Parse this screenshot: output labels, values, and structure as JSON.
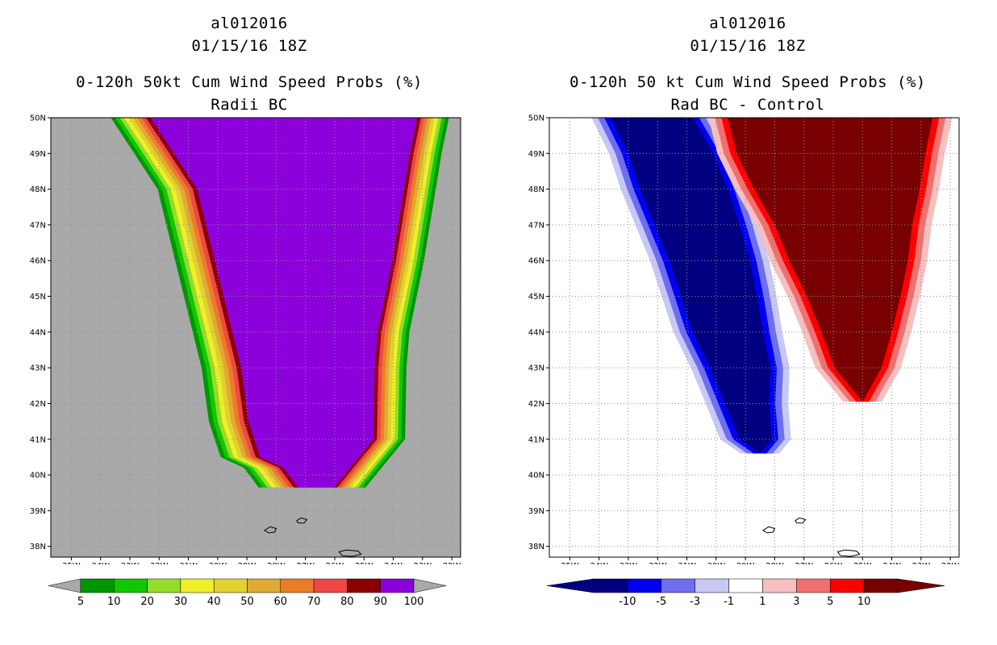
{
  "panels": [
    {
      "storm_id": "al012016",
      "datetime": "01/15/16 18Z",
      "title": "0-120h 50kt Cum Wind Speed Probs (%)",
      "subtitle": "Radii BC"
    },
    {
      "storm_id": "al012016",
      "datetime": "01/15/16 18Z",
      "title": "0-120h 50 kt Cum Wind Speed Probs (%)",
      "subtitle": "Rad BC - Control"
    }
  ],
  "chart_data": [
    {
      "type": "heatmap",
      "title": "0-120h 50kt Cum Wind Speed Probs (%)",
      "subtitle": "Radii BC",
      "x_range_deg_lon": [
        -35.7,
        -21.7
      ],
      "y_range_deg_lat": [
        37.7,
        50
      ],
      "x_tick_labels": [
        "35W",
        "34W",
        "33W",
        "32W",
        "31W",
        "30W",
        "29W",
        "28W",
        "27W",
        "26W",
        "25W",
        "24W",
        "23W",
        "22W"
      ],
      "x_tick_values": [
        -35,
        -34,
        -33,
        -32,
        -31,
        -30,
        -29,
        -28,
        -27,
        -26,
        -25,
        -24,
        -23,
        -22
      ],
      "y_tick_labels": [
        "38N",
        "39N",
        "40N",
        "41N",
        "42N",
        "43N",
        "44N",
        "45N",
        "46N",
        "47N",
        "48N",
        "49N",
        "50N"
      ],
      "y_tick_values": [
        38,
        39,
        40,
        41,
        42,
        43,
        44,
        45,
        46,
        47,
        48,
        49,
        50
      ],
      "background_color": "#a9a9a9",
      "colorbar": {
        "labels": [
          "5",
          "10",
          "20",
          "30",
          "40",
          "50",
          "60",
          "70",
          "80",
          "90",
          "100"
        ],
        "colors": [
          "#009600",
          "#10c800",
          "#96dc28",
          "#f0f028",
          "#e1d232",
          "#e1aa32",
          "#eb7d28",
          "#f04646",
          "#8c0000",
          "#8c00dc"
        ],
        "under_color": "#a9a9a9",
        "over_color": "#a9a9a9"
      },
      "swath_levels_percent": [
        5,
        10,
        20,
        30,
        40,
        50,
        60,
        70,
        80,
        90
      ],
      "swath_west_edge": [
        {
          "lat": 50.0,
          "lon": -32.3
        },
        {
          "lat": 49.0,
          "lon": -31.5
        },
        {
          "lat": 48.0,
          "lon": -30.7
        },
        {
          "lat": 47.0,
          "lon": -30.4
        },
        {
          "lat": 46.0,
          "lon": -30.1
        },
        {
          "lat": 45.0,
          "lon": -29.8
        },
        {
          "lat": 44.0,
          "lon": -29.5
        },
        {
          "lat": 43.0,
          "lon": -29.2
        },
        {
          "lat": 41.5,
          "lon": -28.95
        },
        {
          "lat": 40.5,
          "lon": -28.55
        },
        {
          "lat": 40.2,
          "lon": -27.75
        },
        {
          "lat": 39.65,
          "lon": -27.25
        },
        {
          "lat": 39.65,
          "lon": -26.05
        }
      ],
      "swath_east_edge": [
        {
          "lat": 50.0,
          "lon": -23.2
        },
        {
          "lat": 49.0,
          "lon": -23.45
        },
        {
          "lat": 48.0,
          "lon": -23.65
        },
        {
          "lat": 47.0,
          "lon": -23.85
        },
        {
          "lat": 46.0,
          "lon": -24.05
        },
        {
          "lat": 45.0,
          "lon": -24.3
        },
        {
          "lat": 44.0,
          "lon": -24.55
        },
        {
          "lat": 43.0,
          "lon": -24.65
        },
        {
          "lat": 41.0,
          "lon": -24.7
        },
        {
          "lat": 39.65,
          "lon": -26.05
        }
      ],
      "swath_widths_deg": [
        0.4,
        0.8,
        1.2,
        1.45,
        1.7,
        1.9,
        2.1,
        2.3,
        2.55,
        5
      ]
    },
    {
      "type": "heatmap",
      "title": "0-120h 50 kt Cum Wind Speed Probs (%)",
      "subtitle": "Rad BC - Control",
      "x_range_deg_lon": [
        -35.7,
        -21.7
      ],
      "y_range_deg_lat": [
        37.7,
        50
      ],
      "x_tick_labels": [
        "35W",
        "34W",
        "33W",
        "32W",
        "31W",
        "30W",
        "29W",
        "28W",
        "27W",
        "26W",
        "25W",
        "24W",
        "23W",
        "22W"
      ],
      "x_tick_values": [
        -35,
        -34,
        -33,
        -32,
        -31,
        -30,
        -29,
        -28,
        -27,
        -26,
        -25,
        -24,
        -23,
        -22
      ],
      "y_tick_labels": [
        "38N",
        "39N",
        "40N",
        "41N",
        "42N",
        "43N",
        "44N",
        "45N",
        "46N",
        "47N",
        "48N",
        "49N",
        "50N"
      ],
      "y_tick_values": [
        38,
        39,
        40,
        41,
        42,
        43,
        44,
        45,
        46,
        47,
        48,
        49,
        50
      ],
      "background_color": "#ffffff",
      "colorbar": {
        "labels": [
          "-10",
          "-5",
          "-3",
          "-1",
          "1",
          "3",
          "5",
          "10"
        ],
        "colors": [
          "#000080",
          "#0000f0",
          "#6e6ef0",
          "#c8c8f5",
          "#ffffff",
          "#f5c0c0",
          "#f07070",
          "#ff0000",
          "#780000"
        ],
        "under_color": "#000080",
        "over_color": "#780000"
      },
      "negative_band": {
        "levels": [
          -1,
          -3,
          -5,
          -10
        ],
        "colors": [
          "#c8c8f5",
          "#6e6ef0",
          "#0000f0",
          "#000080"
        ],
        "west_edge": [
          {
            "lat": 50.0,
            "lon": -33.6
          },
          {
            "lat": 49.0,
            "lon": -33.0
          },
          {
            "lat": 48.0,
            "lon": -32.6
          },
          {
            "lat": 47.0,
            "lon": -32.1
          },
          {
            "lat": 46.0,
            "lon": -31.6
          },
          {
            "lat": 45.0,
            "lon": -31.2
          },
          {
            "lat": 44.0,
            "lon": -30.8
          },
          {
            "lat": 43.0,
            "lon": -30.2
          },
          {
            "lat": 42.0,
            "lon": -29.7
          },
          {
            "lat": 41.0,
            "lon": -29.2
          },
          {
            "lat": 40.6,
            "lon": -28.5
          }
        ],
        "east_edge": [
          {
            "lat": 50.0,
            "lon": -30.8
          },
          {
            "lat": 49.0,
            "lon": -30.1
          },
          {
            "lat": 48.0,
            "lon": -29.6
          },
          {
            "lat": 47.0,
            "lon": -29.2
          },
          {
            "lat": 46.0,
            "lon": -28.85
          },
          {
            "lat": 45.0,
            "lon": -28.6
          },
          {
            "lat": 44.0,
            "lon": -28.4
          },
          {
            "lat": 43.0,
            "lon": -28.15
          },
          {
            "lat": 42.0,
            "lon": -28.2
          },
          {
            "lat": 41.0,
            "lon": -28.1
          },
          {
            "lat": 40.6,
            "lon": -28.5
          }
        ],
        "widths_deg": [
          0,
          0.35,
          0.55,
          0.75
        ]
      },
      "positive_band": {
        "levels": [
          1,
          3,
          5,
          10
        ],
        "colors": [
          "#f5c0c0",
          "#f07070",
          "#ff0000",
          "#780000"
        ],
        "west_edge": [
          {
            "lat": 50.0,
            "lon": -29.6
          },
          {
            "lat": 49.0,
            "lon": -29.3
          },
          {
            "lat": 48.0,
            "lon": -28.7
          },
          {
            "lat": 47.0,
            "lon": -28.0
          },
          {
            "lat": 46.0,
            "lon": -27.5
          },
          {
            "lat": 45.0,
            "lon": -26.9
          },
          {
            "lat": 44.0,
            "lon": -26.4
          },
          {
            "lat": 43.0,
            "lon": -25.95
          },
          {
            "lat": 42.05,
            "lon": -25.0
          }
        ],
        "east_edge": [
          {
            "lat": 50.0,
            "lon": -22.6
          },
          {
            "lat": 49.0,
            "lon": -22.85
          },
          {
            "lat": 48.0,
            "lon": -23.05
          },
          {
            "lat": 47.0,
            "lon": -23.3
          },
          {
            "lat": 46.0,
            "lon": -23.45
          },
          {
            "lat": 45.0,
            "lon": -23.7
          },
          {
            "lat": 44.0,
            "lon": -24.0
          },
          {
            "lat": 43.0,
            "lon": -24.35
          },
          {
            "lat": 42.05,
            "lon": -25.0
          }
        ],
        "widths_deg": [
          0,
          0.3,
          0.5,
          0.8
        ]
      }
    }
  ],
  "islands": [
    [
      [
        -28.4,
        38.45
      ],
      [
        -28.2,
        38.55
      ],
      [
        -28.0,
        38.5
      ],
      [
        -28.05,
        38.4
      ],
      [
        -28.25,
        38.38
      ]
    ],
    [
      [
        -27.3,
        38.72
      ],
      [
        -27.15,
        38.8
      ],
      [
        -26.95,
        38.75
      ],
      [
        -27.05,
        38.65
      ],
      [
        -27.25,
        38.66
      ]
    ],
    [
      [
        -25.85,
        37.85
      ],
      [
        -25.6,
        37.9
      ],
      [
        -25.2,
        37.87
      ],
      [
        -25.1,
        37.78
      ],
      [
        -25.4,
        37.72
      ],
      [
        -25.75,
        37.74
      ]
    ]
  ],
  "colors": {
    "grid": "#909090",
    "frame": "#000000"
  }
}
